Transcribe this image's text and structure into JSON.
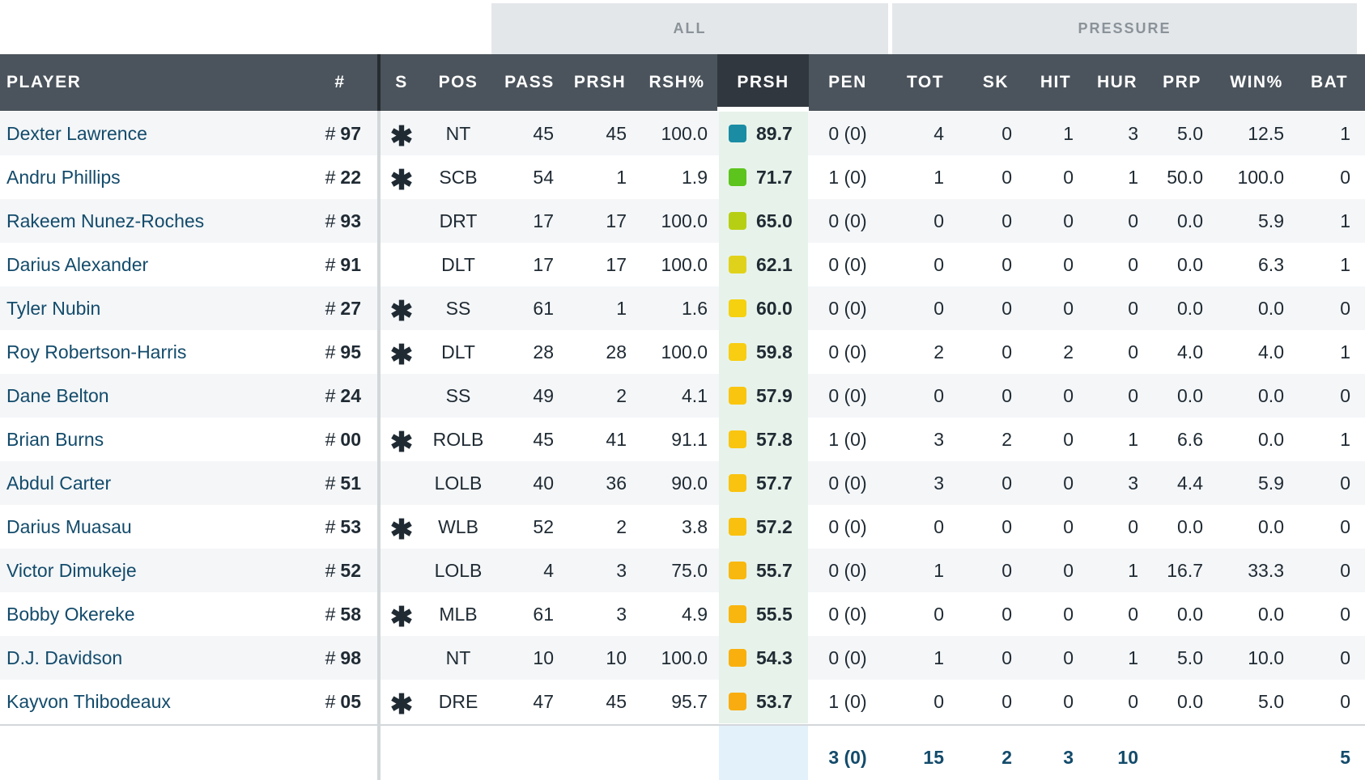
{
  "groups": {
    "all": "ALL",
    "pressure": "PRESSURE"
  },
  "headers": {
    "player": "PLAYER",
    "num": "#",
    "s": "S",
    "pos": "POS",
    "pass": "PASS",
    "prsh": "PRSH",
    "rsh_pct": "RSH%",
    "prsh_grade": "PRSH",
    "pen": "PEN",
    "tot": "TOT",
    "sk": "SK",
    "hit": "HIT",
    "hur": "HUR",
    "prp": "PRP",
    "win_pct": "WIN%",
    "bat": "BAT"
  },
  "colors": {
    "header_bg": "#4b545c",
    "active_header_bg": "#30373e",
    "group_bg": "#e4e7ea",
    "name_link": "#134b6b",
    "grade_cell_bg": "#e7f3ea",
    "totals_grade_bg": "#e3f1fb"
  },
  "icons": {
    "starter": "asterisk-icon",
    "grade_chip": "grade-color-chip"
  },
  "rows": [
    {
      "name": "Dexter Lawrence",
      "num_hash": "#",
      "num": "97",
      "starter": "✱",
      "pos": "NT",
      "pass": "45",
      "prsh": "45",
      "rsh_pct": "100.0",
      "grade": "89.7",
      "grade_color": "#1a8ca4",
      "pen": "0 (0)",
      "tot": "4",
      "sk": "0",
      "hit": "1",
      "hur": "3",
      "prp": "5.0",
      "win_pct": "12.5",
      "bat": "1"
    },
    {
      "name": "Andru Phillips",
      "num_hash": "#",
      "num": "22",
      "starter": "✱",
      "pos": "SCB",
      "pass": "54",
      "prsh": "1",
      "rsh_pct": "1.9",
      "grade": "71.7",
      "grade_color": "#5cc41c",
      "pen": "1 (0)",
      "tot": "1",
      "sk": "0",
      "hit": "0",
      "hur": "1",
      "prp": "50.0",
      "win_pct": "100.0",
      "bat": "0"
    },
    {
      "name": "Rakeem Nunez-Roches",
      "num_hash": "#",
      "num": "93",
      "starter": "",
      "pos": "DRT",
      "pass": "17",
      "prsh": "17",
      "rsh_pct": "100.0",
      "grade": "65.0",
      "grade_color": "#b7cf12",
      "pen": "0 (0)",
      "tot": "0",
      "sk": "0",
      "hit": "0",
      "hur": "0",
      "prp": "0.0",
      "win_pct": "5.9",
      "bat": "1"
    },
    {
      "name": "Darius Alexander",
      "num_hash": "#",
      "num": "91",
      "starter": "",
      "pos": "DLT",
      "pass": "17",
      "prsh": "17",
      "rsh_pct": "100.0",
      "grade": "62.1",
      "grade_color": "#e0d21a",
      "pen": "0 (0)",
      "tot": "0",
      "sk": "0",
      "hit": "0",
      "hur": "0",
      "prp": "0.0",
      "win_pct": "6.3",
      "bat": "1"
    },
    {
      "name": "Tyler Nubin",
      "num_hash": "#",
      "num": "27",
      "starter": "✱",
      "pos": "SS",
      "pass": "61",
      "prsh": "1",
      "rsh_pct": "1.6",
      "grade": "60.0",
      "grade_color": "#f5d10f",
      "pen": "0 (0)",
      "tot": "0",
      "sk": "0",
      "hit": "0",
      "hur": "0",
      "prp": "0.0",
      "win_pct": "0.0",
      "bat": "0"
    },
    {
      "name": "Roy Robertson-Harris",
      "num_hash": "#",
      "num": "95",
      "starter": "✱",
      "pos": "DLT",
      "pass": "28",
      "prsh": "28",
      "rsh_pct": "100.0",
      "grade": "59.8",
      "grade_color": "#f8cd12",
      "pen": "0 (0)",
      "tot": "2",
      "sk": "0",
      "hit": "2",
      "hur": "0",
      "prp": "4.0",
      "win_pct": "4.0",
      "bat": "1"
    },
    {
      "name": "Dane Belton",
      "num_hash": "#",
      "num": "24",
      "starter": "",
      "pos": "SS",
      "pass": "49",
      "prsh": "2",
      "rsh_pct": "4.1",
      "grade": "57.9",
      "grade_color": "#f9c50f",
      "pen": "0 (0)",
      "tot": "0",
      "sk": "0",
      "hit": "0",
      "hur": "0",
      "prp": "0.0",
      "win_pct": "0.0",
      "bat": "0"
    },
    {
      "name": "Brian Burns",
      "num_hash": "#",
      "num": "00",
      "starter": "✱",
      "pos": "ROLB",
      "pass": "45",
      "prsh": "41",
      "rsh_pct": "91.1",
      "grade": "57.8",
      "grade_color": "#f9c50f",
      "pen": "1 (0)",
      "tot": "3",
      "sk": "2",
      "hit": "0",
      "hur": "1",
      "prp": "6.6",
      "win_pct": "0.0",
      "bat": "1"
    },
    {
      "name": "Abdul Carter",
      "num_hash": "#",
      "num": "51",
      "starter": "",
      "pos": "LOLB",
      "pass": "40",
      "prsh": "36",
      "rsh_pct": "90.0",
      "grade": "57.7",
      "grade_color": "#f9c30f",
      "pen": "0 (0)",
      "tot": "3",
      "sk": "0",
      "hit": "0",
      "hur": "3",
      "prp": "4.4",
      "win_pct": "5.9",
      "bat": "0"
    },
    {
      "name": "Darius Muasau",
      "num_hash": "#",
      "num": "53",
      "starter": "✱",
      "pos": "WLB",
      "pass": "52",
      "prsh": "2",
      "rsh_pct": "3.8",
      "grade": "57.2",
      "grade_color": "#f9c00f",
      "pen": "0 (0)",
      "tot": "0",
      "sk": "0",
      "hit": "0",
      "hur": "0",
      "prp": "0.0",
      "win_pct": "0.0",
      "bat": "0"
    },
    {
      "name": "Victor Dimukeje",
      "num_hash": "#",
      "num": "52",
      "starter": "",
      "pos": "LOLB",
      "pass": "4",
      "prsh": "3",
      "rsh_pct": "75.0",
      "grade": "55.7",
      "grade_color": "#f9b80f",
      "pen": "0 (0)",
      "tot": "1",
      "sk": "0",
      "hit": "0",
      "hur": "1",
      "prp": "16.7",
      "win_pct": "33.3",
      "bat": "0"
    },
    {
      "name": "Bobby Okereke",
      "num_hash": "#",
      "num": "58",
      "starter": "✱",
      "pos": "MLB",
      "pass": "61",
      "prsh": "3",
      "rsh_pct": "4.9",
      "grade": "55.5",
      "grade_color": "#f9b60f",
      "pen": "0 (0)",
      "tot": "0",
      "sk": "0",
      "hit": "0",
      "hur": "0",
      "prp": "0.0",
      "win_pct": "0.0",
      "bat": "0"
    },
    {
      "name": "D.J. Davidson",
      "num_hash": "#",
      "num": "98",
      "starter": "",
      "pos": "NT",
      "pass": "10",
      "prsh": "10",
      "rsh_pct": "100.0",
      "grade": "54.3",
      "grade_color": "#f9b00f",
      "pen": "0 (0)",
      "tot": "1",
      "sk": "0",
      "hit": "0",
      "hur": "1",
      "prp": "5.0",
      "win_pct": "10.0",
      "bat": "0"
    },
    {
      "name": "Kayvon Thibodeaux",
      "num_hash": "#",
      "num": "05",
      "starter": "✱",
      "pos": "DRE",
      "pass": "47",
      "prsh": "45",
      "rsh_pct": "95.7",
      "grade": "53.7",
      "grade_color": "#f9ac0f",
      "pen": "1 (0)",
      "tot": "0",
      "sk": "0",
      "hit": "0",
      "hur": "0",
      "prp": "0.0",
      "win_pct": "5.0",
      "bat": "0"
    }
  ],
  "totals": {
    "pen": "3 (0)",
    "tot": "15",
    "sk": "2",
    "hit": "3",
    "hur": "10",
    "bat": "5"
  }
}
